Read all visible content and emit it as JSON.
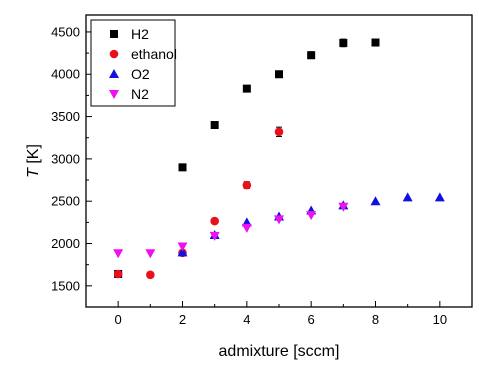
{
  "chart_data": {
    "type": "scatter",
    "xlabel": "admixture [sccm]",
    "ylabel_var": "T",
    "ylabel_unit": " [K]",
    "xlim": [
      -1,
      11
    ],
    "ylim": [
      1250,
      4700
    ],
    "xticks": [
      0,
      2,
      4,
      6,
      8,
      10
    ],
    "yticks": [
      1500,
      2000,
      2500,
      3000,
      3500,
      4000,
      4500
    ],
    "grid": false,
    "legend": "top-left",
    "series": [
      {
        "name": "H2",
        "marker": "square",
        "color": "#000000",
        "points": [
          {
            "x": 0,
            "y": 1640
          },
          {
            "x": 2,
            "y": 2900
          },
          {
            "x": 3,
            "y": 3400
          },
          {
            "x": 4,
            "y": 3830
          },
          {
            "x": 5,
            "y": 4000
          },
          {
            "x": 6,
            "y": 4225,
            "err": 40
          },
          {
            "x": 7,
            "y": 4370,
            "err": 45
          },
          {
            "x": 8,
            "y": 4375,
            "err": 40
          }
        ]
      },
      {
        "name": "ethanol",
        "marker": "circle",
        "color": "#e8101a",
        "points": [
          {
            "x": 0,
            "y": 1640
          },
          {
            "x": 1,
            "y": 1630
          },
          {
            "x": 2,
            "y": 1890
          },
          {
            "x": 3,
            "y": 2265
          },
          {
            "x": 4,
            "y": 2690,
            "err": 40
          },
          {
            "x": 5,
            "y": 3320,
            "err": 55
          }
        ]
      },
      {
        "name": "O2",
        "marker": "triangle-up",
        "color": "#1010e0",
        "points": [
          {
            "x": 2,
            "y": 1895
          },
          {
            "x": 3,
            "y": 2100
          },
          {
            "x": 4,
            "y": 2250
          },
          {
            "x": 5,
            "y": 2320
          },
          {
            "x": 6,
            "y": 2390
          },
          {
            "x": 7,
            "y": 2450
          },
          {
            "x": 8,
            "y": 2500
          },
          {
            "x": 9,
            "y": 2545
          },
          {
            "x": 10,
            "y": 2545
          }
        ]
      },
      {
        "name": "N2",
        "marker": "triangle-down",
        "color": "#ee10ee",
        "points": [
          {
            "x": 0,
            "y": 1885
          },
          {
            "x": 1,
            "y": 1885
          },
          {
            "x": 2,
            "y": 1965
          },
          {
            "x": 3,
            "y": 2090
          },
          {
            "x": 4,
            "y": 2185
          },
          {
            "x": 5,
            "y": 2285
          },
          {
            "x": 6,
            "y": 2335
          },
          {
            "x": 7,
            "y": 2435
          }
        ]
      }
    ]
  }
}
